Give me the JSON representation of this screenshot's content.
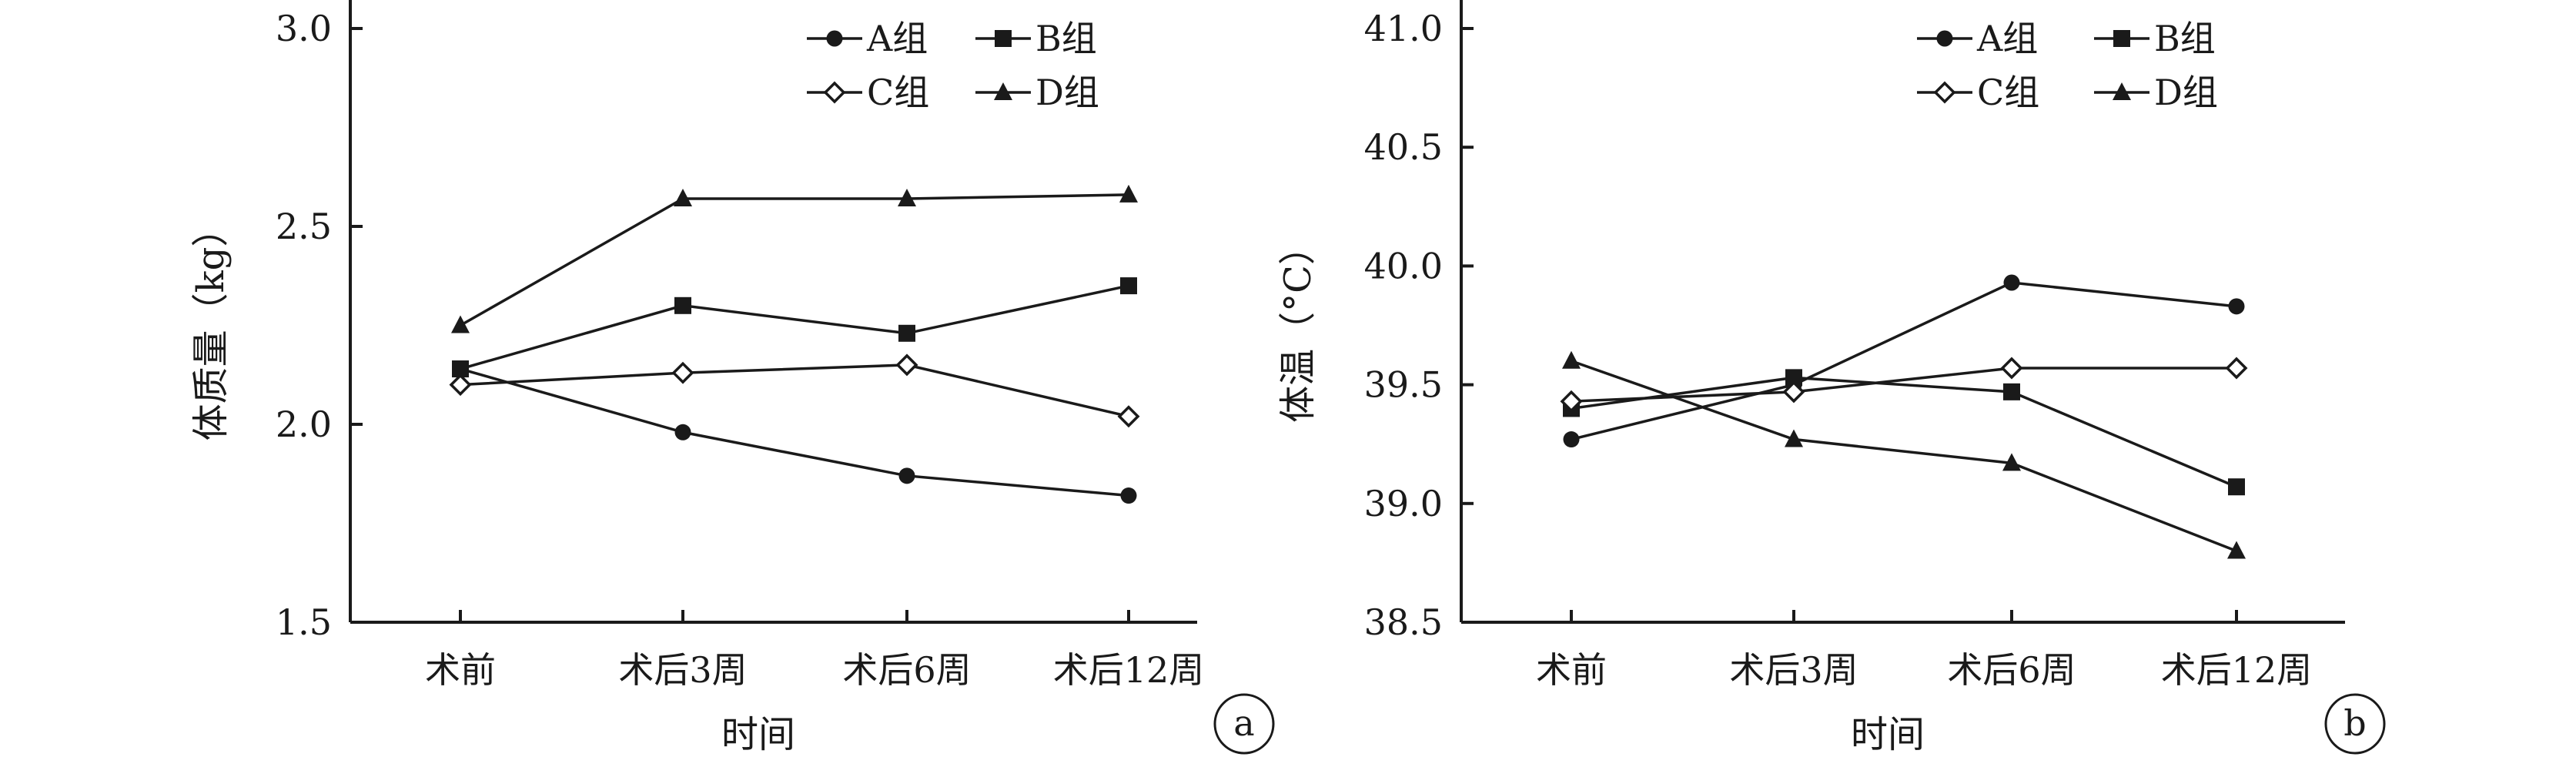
{
  "chart_data": [
    {
      "type": "line",
      "panel_label": "a",
      "categories": [
        "术前",
        "术后3周",
        "术后6周",
        "术后12周"
      ],
      "xlabel": "时间",
      "ylabel": "体质量（kg）",
      "ylim": [
        1.5,
        3.0
      ],
      "yticks": [
        "1.5",
        "2.0",
        "2.5",
        "3.0"
      ],
      "legend_position": "top-right",
      "grid": false,
      "series": [
        {
          "name": "A组",
          "marker": "circle",
          "values": [
            2.14,
            1.98,
            1.87,
            1.82
          ]
        },
        {
          "name": "B组",
          "marker": "square",
          "values": [
            2.14,
            2.3,
            2.23,
            2.35
          ]
        },
        {
          "name": "C组",
          "marker": "diamond",
          "values": [
            2.1,
            2.13,
            2.15,
            2.02
          ]
        },
        {
          "name": "D组",
          "marker": "triangle",
          "values": [
            2.25,
            2.57,
            2.57,
            2.58
          ]
        }
      ]
    },
    {
      "type": "line",
      "panel_label": "b",
      "categories": [
        "术前",
        "术后3周",
        "术后6周",
        "术后12周"
      ],
      "xlabel": "时间",
      "ylabel": "体温（°C）",
      "ylim": [
        38.5,
        41.0
      ],
      "yticks": [
        "38.5",
        "39.0",
        "39.5",
        "40.0",
        "40.5",
        "41.0"
      ],
      "legend_position": "top-right",
      "grid": false,
      "series": [
        {
          "name": "A组",
          "marker": "circle",
          "values": [
            39.27,
            39.5,
            39.93,
            39.83
          ]
        },
        {
          "name": "B组",
          "marker": "square",
          "values": [
            39.4,
            39.53,
            39.47,
            39.07
          ]
        },
        {
          "name": "C组",
          "marker": "diamond",
          "values": [
            39.43,
            39.47,
            39.57,
            39.57
          ]
        },
        {
          "name": "D组",
          "marker": "triangle",
          "values": [
            39.6,
            39.27,
            39.17,
            38.8
          ]
        }
      ]
    }
  ]
}
